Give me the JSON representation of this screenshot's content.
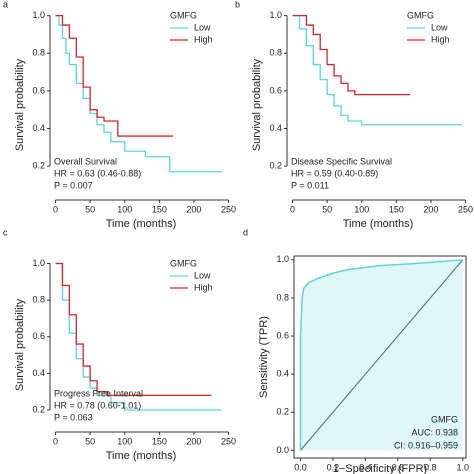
{
  "chart_data": [
    {
      "type": "km",
      "panel_label": "a",
      "xlabel": "Time (months)",
      "ylabel": "Survival probability",
      "legend_title": "GMFG",
      "annotations": [
        "Overall Survival",
        "HR = 0.63 (0.46-0.88)",
        "P = 0.007"
      ],
      "xlim": [
        -8,
        255
      ],
      "ylim": [
        0.02,
        1.03
      ],
      "xticks": [
        0,
        50,
        100,
        150,
        200,
        250
      ],
      "yticks": [
        0.2,
        0.4,
        0.6,
        0.8,
        {
          "value": 1,
          "label": "1.0"
        }
      ],
      "series": [
        {
          "name": "Low",
          "color": "#5cd6d6",
          "x": [
            0,
            5,
            10,
            15,
            20,
            30,
            40,
            50,
            60,
            70,
            80,
            100,
            130,
            165,
            240
          ],
          "values": [
            1,
            0.95,
            0.88,
            0.8,
            0.74,
            0.64,
            0.56,
            0.48,
            0.42,
            0.38,
            0.33,
            0.28,
            0.25,
            0.17,
            0.17
          ]
        },
        {
          "name": "High",
          "color": "#d62728",
          "x": [
            0,
            10,
            20,
            30,
            40,
            50,
            60,
            70,
            90,
            170
          ],
          "values": [
            1,
            0.95,
            0.88,
            0.78,
            0.62,
            0.5,
            0.46,
            0.44,
            0.36,
            0.36
          ]
        }
      ]
    },
    {
      "type": "km",
      "panel_label": "b",
      "xlabel": "Time (months)",
      "ylabel": "Survival probability",
      "legend_title": "GMFG",
      "annotations": [
        "Disease Specific Survival",
        "HR = 0.59 (0.40-0.89)",
        "P = 0.011"
      ],
      "xlim": [
        -8,
        255
      ],
      "ylim": [
        0.02,
        1.03
      ],
      "xticks": [
        0,
        50,
        100,
        150,
        200,
        250
      ],
      "yticks": [
        0.2,
        0.4,
        0.6,
        0.8,
        {
          "value": 1,
          "label": "1.0"
        }
      ],
      "series": [
        {
          "name": "Low",
          "color": "#5cd6d6",
          "x": [
            0,
            10,
            20,
            30,
            40,
            50,
            60,
            70,
            80,
            100,
            245
          ],
          "values": [
            1,
            0.93,
            0.84,
            0.74,
            0.66,
            0.58,
            0.52,
            0.47,
            0.44,
            0.42,
            0.42
          ]
        },
        {
          "name": "High",
          "color": "#d62728",
          "x": [
            0,
            20,
            30,
            40,
            50,
            60,
            70,
            80,
            90,
            170
          ],
          "values": [
            1,
            0.95,
            0.9,
            0.82,
            0.74,
            0.68,
            0.64,
            0.6,
            0.58,
            0.58
          ]
        }
      ]
    },
    {
      "type": "km",
      "panel_label": "c",
      "xlabel": "Time (months)",
      "ylabel": "Survival probability",
      "legend_title": "GMFG",
      "annotations": [
        "Progress Free Interval",
        "HR = 0.78 (0.60-1.01)",
        "P = 0.063"
      ],
      "xlim": [
        -8,
        255
      ],
      "ylim": [
        0.08,
        1.03
      ],
      "xticks": [
        0,
        50,
        100,
        150,
        200,
        250
      ],
      "yticks": [
        0.2,
        0.4,
        0.6,
        0.8,
        {
          "value": 1,
          "label": "1.0"
        }
      ],
      "series": [
        {
          "name": "Low",
          "color": "#5cd6d6",
          "x": [
            0,
            10,
            20,
            30,
            40,
            50,
            60,
            80,
            100,
            240
          ],
          "values": [
            1,
            0.8,
            0.62,
            0.48,
            0.38,
            0.32,
            0.28,
            0.24,
            0.2,
            0.2
          ]
        },
        {
          "name": "High",
          "color": "#d62728",
          "x": [
            0,
            10,
            20,
            30,
            40,
            50,
            60,
            75,
            225
          ],
          "values": [
            1,
            0.88,
            0.72,
            0.56,
            0.44,
            0.36,
            0.3,
            0.28,
            0.28
          ]
        }
      ]
    },
    {
      "type": "roc",
      "panel_label": "d",
      "xlabel": "1−Specificity (FPR)",
      "ylabel": "Sensitivity (TPR)",
      "annotations": [
        "GMFG",
        "AUC: 0.938",
        "CI: 0.916–0.959"
      ],
      "xlim": [
        -0.04,
        1.02
      ],
      "ylim": [
        -0.04,
        1.02
      ],
      "xticks": [
        {
          "value": 0,
          "label": "0.0"
        },
        0.2,
        0.4,
        0.6,
        0.8,
        {
          "value": 1,
          "label": "1.0"
        }
      ],
      "yticks": [
        {
          "value": 0,
          "label": "0.0"
        },
        0.2,
        0.4,
        0.6,
        0.8,
        {
          "value": 1,
          "label": "1.0"
        }
      ],
      "series": [
        {
          "name": "GMFG",
          "color": "#5cd6d6",
          "fill": "#e0f7f7",
          "x": [
            0,
            0,
            0.01,
            0.02,
            0.05,
            0.1,
            0.2,
            0.3,
            0.5,
            0.7,
            1
          ],
          "values": [
            0,
            0.6,
            0.8,
            0.85,
            0.88,
            0.9,
            0.93,
            0.95,
            0.97,
            0.98,
            1
          ]
        }
      ]
    }
  ]
}
